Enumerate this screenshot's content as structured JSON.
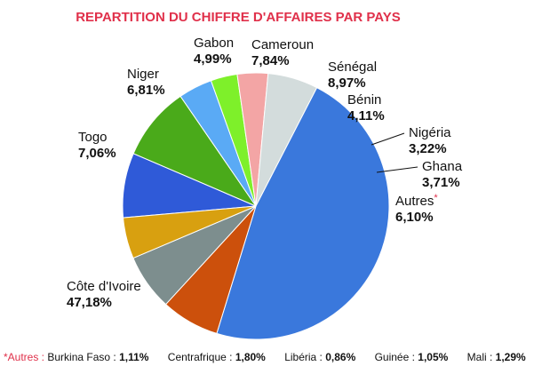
{
  "chart_data": {
    "type": "pie",
    "title": "REPARTITION DU CHIFFRE D'AFFAIRES PAR PAYS",
    "unit": "%",
    "slices": [
      {
        "label": "Cameroun",
        "value": 7.84,
        "display": "7,84%",
        "color": "#2f5ad8"
      },
      {
        "label": "Sénégal",
        "value": 8.97,
        "display": "8,97%",
        "color": "#4aaa1a"
      },
      {
        "label": "Bénin",
        "value": 4.11,
        "display": "4,11%",
        "color": "#5aaaf5"
      },
      {
        "label": "Nigéria",
        "value": 3.22,
        "display": "3,22%",
        "color": "#7ef02a"
      },
      {
        "label": "Ghana",
        "value": 3.71,
        "display": "3,71%",
        "color": "#f3a5a5"
      },
      {
        "label": "Autres",
        "value": 6.1,
        "display": "6,10%",
        "color": "#d3dcdc",
        "asterisk": "*"
      },
      {
        "label": "Côte d'Ivoire",
        "value": 47.18,
        "display": "47,18%",
        "color": "#3a78dc"
      },
      {
        "label": "Togo",
        "value": 7.06,
        "display": "7,06%",
        "color": "#cc500c"
      },
      {
        "label": "Niger",
        "value": 6.81,
        "display": "6,81%",
        "color": "#7d8e8e"
      },
      {
        "label": "Gabon",
        "value": 4.99,
        "display": "4,99%",
        "color": "#d8a010"
      }
    ]
  },
  "footnote": {
    "prefix": "*Autres :",
    "items": [
      {
        "name": "Burkina Faso :",
        "value": "1,11%"
      },
      {
        "name": "Centrafrique :",
        "value": "1,80%"
      },
      {
        "name": "Libéria :",
        "value": "0,86%"
      },
      {
        "name": "Guinée :",
        "value": "1,05%"
      },
      {
        "name": "Mali :",
        "value": "1,29%"
      }
    ]
  },
  "colors": {
    "title": "#e0304a",
    "asterisk": "#e0304a"
  }
}
